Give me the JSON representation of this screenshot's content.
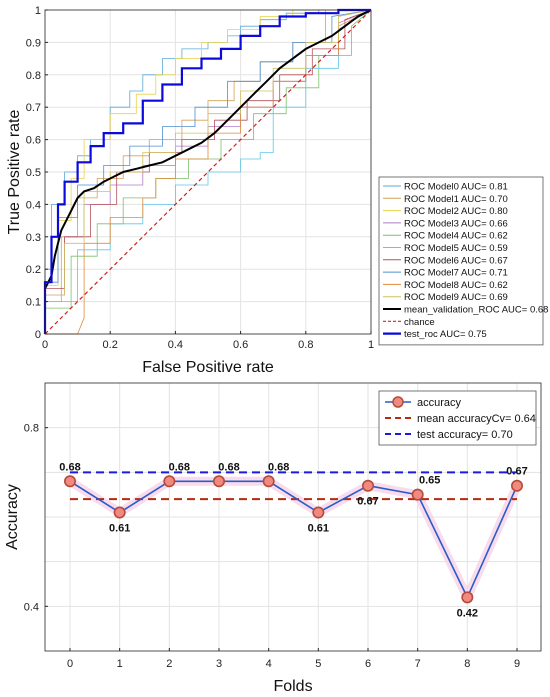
{
  "chart_data": [
    {
      "type": "line",
      "xlabel": "False Positive rate",
      "ylabel": "True Positive rate",
      "xlim": [
        0,
        1
      ],
      "ylim": [
        0,
        1
      ],
      "xticks": [
        "0",
        "0.2",
        "0.4",
        "0.6",
        "0.8",
        "1"
      ],
      "yticks": [
        "0",
        "0.1",
        "0.2",
        "0.3",
        "0.4",
        "0.5",
        "0.6",
        "0.7",
        "0.8",
        "0.9",
        "1"
      ],
      "grid": true,
      "legend_position": "right",
      "series": [
        {
          "name": "ROC Model0 AUC= 0.81",
          "color": "#5aa9d6",
          "width": 0.8,
          "x": [
            0,
            0,
            0.02,
            0.02,
            0.06,
            0.06,
            0.1,
            0.1,
            0.14,
            0.14,
            0.2,
            0.2,
            0.26,
            0.26,
            0.3,
            0.3,
            0.36,
            0.36,
            0.42,
            0.42,
            0.5,
            0.5,
            0.56,
            0.56,
            0.6,
            0.6,
            0.66,
            0.66,
            0.74,
            0.74,
            0.84,
            0.84,
            1
          ],
          "y": [
            0,
            0.2,
            0.2,
            0.4,
            0.4,
            0.5,
            0.5,
            0.55,
            0.55,
            0.6,
            0.6,
            0.7,
            0.7,
            0.75,
            0.75,
            0.8,
            0.8,
            0.85,
            0.85,
            0.88,
            0.88,
            0.9,
            0.9,
            0.92,
            0.92,
            0.95,
            0.95,
            0.97,
            0.97,
            0.99,
            0.99,
            1,
            1
          ]
        },
        {
          "name": "ROC Model1 AUC= 0.70",
          "color": "#d4a05a",
          "width": 0.8,
          "x": [
            0,
            0,
            0.05,
            0.05,
            0.1,
            0.1,
            0.16,
            0.16,
            0.24,
            0.24,
            0.32,
            0.32,
            0.42,
            0.42,
            0.5,
            0.5,
            0.58,
            0.58,
            0.66,
            0.66,
            0.76,
            0.76,
            0.86,
            0.86,
            1
          ],
          "y": [
            0,
            0.1,
            0.1,
            0.3,
            0.3,
            0.42,
            0.42,
            0.48,
            0.48,
            0.55,
            0.55,
            0.6,
            0.6,
            0.66,
            0.66,
            0.72,
            0.72,
            0.78,
            0.78,
            0.84,
            0.84,
            0.9,
            0.9,
            1,
            1
          ]
        },
        {
          "name": "ROC Model2 AUC= 0.80",
          "color": "#e8d24a",
          "width": 0.8,
          "x": [
            0,
            0,
            0.04,
            0.04,
            0.08,
            0.08,
            0.12,
            0.12,
            0.2,
            0.2,
            0.28,
            0.28,
            0.34,
            0.34,
            0.4,
            0.4,
            0.48,
            0.48,
            0.56,
            0.56,
            0.66,
            0.66,
            0.76,
            0.76,
            1
          ],
          "y": [
            0,
            0.15,
            0.15,
            0.35,
            0.35,
            0.48,
            0.48,
            0.6,
            0.6,
            0.68,
            0.68,
            0.74,
            0.74,
            0.8,
            0.8,
            0.85,
            0.85,
            0.9,
            0.9,
            0.94,
            0.94,
            0.98,
            0.98,
            1,
            1
          ]
        },
        {
          "name": "ROC Model3 AUC= 0.66",
          "color": "#b07cc8",
          "width": 0.8,
          "x": [
            0,
            0,
            0.06,
            0.06,
            0.12,
            0.12,
            0.2,
            0.2,
            0.3,
            0.3,
            0.4,
            0.4,
            0.5,
            0.5,
            0.6,
            0.6,
            0.7,
            0.7,
            0.8,
            0.8,
            0.9,
            0.9,
            1
          ],
          "y": [
            0,
            0.12,
            0.12,
            0.3,
            0.3,
            0.4,
            0.4,
            0.46,
            0.46,
            0.52,
            0.52,
            0.58,
            0.58,
            0.64,
            0.64,
            0.7,
            0.7,
            0.78,
            0.78,
            0.86,
            0.86,
            0.96,
            1
          ]
        },
        {
          "name": "ROC Model4 AUC= 0.62",
          "color": "#7cc06a",
          "width": 0.8,
          "x": [
            0,
            0,
            0.08,
            0.08,
            0.16,
            0.16,
            0.24,
            0.24,
            0.34,
            0.34,
            0.44,
            0.44,
            0.54,
            0.54,
            0.64,
            0.64,
            0.74,
            0.74,
            0.84,
            0.84,
            0.94,
            0.94,
            1
          ],
          "y": [
            0,
            0.08,
            0.08,
            0.24,
            0.24,
            0.34,
            0.34,
            0.42,
            0.42,
            0.48,
            0.48,
            0.54,
            0.54,
            0.6,
            0.6,
            0.68,
            0.68,
            0.76,
            0.76,
            0.86,
            0.86,
            0.95,
            1
          ]
        },
        {
          "name": "ROC Model5 AUC= 0.59",
          "color": "#5fc8e8",
          "width": 0.8,
          "x": [
            0,
            0,
            0.1,
            0.1,
            0.2,
            0.2,
            0.3,
            0.3,
            0.4,
            0.4,
            0.5,
            0.5,
            0.6,
            0.6,
            0.66,
            0.66,
            0.7,
            0.7,
            0.8,
            0.8,
            0.9,
            0.9,
            1
          ],
          "y": [
            0,
            0.1,
            0.1,
            0.26,
            0.26,
            0.34,
            0.34,
            0.4,
            0.4,
            0.46,
            0.46,
            0.5,
            0.5,
            0.54,
            0.54,
            0.56,
            0.56,
            0.7,
            0.7,
            0.82,
            0.82,
            0.94,
            1
          ]
        },
        {
          "name": "ROC Model6 AUC= 0.67",
          "color": "#b5525a",
          "width": 0.8,
          "x": [
            0,
            0,
            0.06,
            0.06,
            0.14,
            0.14,
            0.22,
            0.22,
            0.32,
            0.32,
            0.42,
            0.42,
            0.52,
            0.52,
            0.62,
            0.62,
            0.72,
            0.72,
            0.82,
            0.82,
            0.92,
            0.92,
            1
          ],
          "y": [
            0,
            0.14,
            0.14,
            0.3,
            0.3,
            0.4,
            0.4,
            0.5,
            0.5,
            0.56,
            0.56,
            0.6,
            0.6,
            0.66,
            0.66,
            0.72,
            0.72,
            0.8,
            0.8,
            0.88,
            0.88,
            0.97,
            1
          ]
        },
        {
          "name": "ROC Model7 AUC= 0.71",
          "color": "#4f8fcf",
          "width": 0.8,
          "x": [
            0,
            0,
            0.04,
            0.04,
            0.1,
            0.1,
            0.18,
            0.18,
            0.26,
            0.26,
            0.36,
            0.36,
            0.46,
            0.46,
            0.56,
            0.56,
            0.66,
            0.66,
            0.76,
            0.76,
            0.88,
            0.88,
            1
          ],
          "y": [
            0,
            0.16,
            0.16,
            0.36,
            0.36,
            0.46,
            0.46,
            0.52,
            0.52,
            0.58,
            0.58,
            0.64,
            0.64,
            0.7,
            0.7,
            0.78,
            0.78,
            0.84,
            0.84,
            0.9,
            0.9,
            0.98,
            1
          ]
        },
        {
          "name": "ROC Model8 AUC= 0.62",
          "color": "#e08a3a",
          "width": 0.8,
          "x": [
            0,
            0.1,
            0.12,
            0.12,
            0.2,
            0.2,
            0.3,
            0.3,
            0.34,
            0.34,
            0.4,
            0.4,
            0.5,
            0.5,
            0.6,
            0.6,
            0.7,
            0.7,
            0.8,
            0.8,
            0.9,
            0.9,
            1
          ],
          "y": [
            0,
            0,
            0.05,
            0.28,
            0.28,
            0.36,
            0.36,
            0.42,
            0.42,
            0.48,
            0.48,
            0.54,
            0.54,
            0.62,
            0.62,
            0.7,
            0.7,
            0.78,
            0.78,
            0.86,
            0.86,
            0.95,
            1
          ]
        },
        {
          "name": "ROC Model9 AUC= 0.69",
          "color": "#cfc060",
          "width": 0.8,
          "x": [
            0,
            0,
            0.06,
            0.06,
            0.12,
            0.12,
            0.2,
            0.2,
            0.3,
            0.3,
            0.4,
            0.4,
            0.5,
            0.5,
            0.6,
            0.6,
            0.7,
            0.7,
            0.8,
            0.8,
            0.9,
            0.9,
            1
          ],
          "y": [
            0,
            0.12,
            0.12,
            0.28,
            0.28,
            0.44,
            0.44,
            0.5,
            0.5,
            0.56,
            0.56,
            0.62,
            0.62,
            0.68,
            0.68,
            0.75,
            0.75,
            0.82,
            0.82,
            0.9,
            0.9,
            0.98,
            1
          ]
        },
        {
          "name": "mean_validation_ROC AUC= 0.68",
          "color": "#000000",
          "width": 2,
          "x": [
            0,
            0.01,
            0.02,
            0.03,
            0.04,
            0.05,
            0.06,
            0.08,
            0.1,
            0.12,
            0.15,
            0.18,
            0.2,
            0.24,
            0.28,
            0.32,
            0.36,
            0.4,
            0.44,
            0.48,
            0.52,
            0.56,
            0.6,
            0.64,
            0.68,
            0.72,
            0.76,
            0.8,
            0.84,
            0.88,
            0.92,
            0.96,
            1
          ],
          "y": [
            0.14,
            0.16,
            0.18,
            0.24,
            0.28,
            0.32,
            0.34,
            0.38,
            0.42,
            0.44,
            0.45,
            0.47,
            0.48,
            0.5,
            0.51,
            0.52,
            0.53,
            0.55,
            0.57,
            0.59,
            0.62,
            0.66,
            0.7,
            0.74,
            0.78,
            0.82,
            0.85,
            0.88,
            0.9,
            0.92,
            0.95,
            0.98,
            1
          ]
        },
        {
          "name": "chance",
          "color": "#cc2222",
          "width": 1.2,
          "dashed": true,
          "x": [
            0,
            1
          ],
          "y": [
            0,
            1
          ]
        },
        {
          "name": "test_roc AUC= 0.75",
          "color": "#0a0adc",
          "width": 2.2,
          "x": [
            0,
            0,
            0.02,
            0.02,
            0.04,
            0.04,
            0.06,
            0.06,
            0.1,
            0.1,
            0.14,
            0.14,
            0.18,
            0.18,
            0.24,
            0.24,
            0.3,
            0.3,
            0.36,
            0.36,
            0.42,
            0.42,
            0.48,
            0.48,
            0.54,
            0.54,
            0.6,
            0.6,
            0.66,
            0.66,
            0.72,
            0.72,
            0.8,
            0.8,
            0.9,
            0.9,
            1
          ],
          "y": [
            0,
            0.16,
            0.16,
            0.3,
            0.3,
            0.4,
            0.4,
            0.47,
            0.47,
            0.53,
            0.53,
            0.58,
            0.58,
            0.62,
            0.62,
            0.65,
            0.65,
            0.72,
            0.72,
            0.77,
            0.77,
            0.82,
            0.82,
            0.85,
            0.85,
            0.88,
            0.88,
            0.92,
            0.92,
            0.95,
            0.95,
            0.98,
            0.98,
            0.99,
            0.99,
            1,
            1
          ]
        }
      ]
    },
    {
      "type": "line",
      "xlabel": "Folds",
      "ylabel": "Accuracy",
      "categories": [
        "0",
        "1",
        "2",
        "3",
        "4",
        "5",
        "6",
        "7",
        "8",
        "9"
      ],
      "ylim": [
        0.3,
        0.9
      ],
      "yticks": [
        "0.4",
        "0.8"
      ],
      "grid": true,
      "legend_position": "top-right",
      "series": [
        {
          "name": "accuracy",
          "color": "#2a5cc8",
          "marker_fill": "#f08a80",
          "marker_edge": "#b54a3a",
          "values": [
            0.68,
            0.61,
            0.68,
            0.68,
            0.68,
            0.61,
            0.67,
            0.65,
            0.42,
            0.67
          ]
        },
        {
          "name": "mean accuracyCv= 0.64",
          "color": "#b52a10",
          "dashed": true,
          "value": 0.64
        },
        {
          "name": "test accuracy= 0.70",
          "color": "#1a1ae0",
          "dashed": true,
          "value": 0.7
        }
      ],
      "data_labels": [
        "0.68",
        "0.61",
        "0.68",
        "0.68",
        "0.68",
        "0.61",
        "0.67",
        "0.65",
        "0.42",
        "0.67"
      ]
    }
  ]
}
